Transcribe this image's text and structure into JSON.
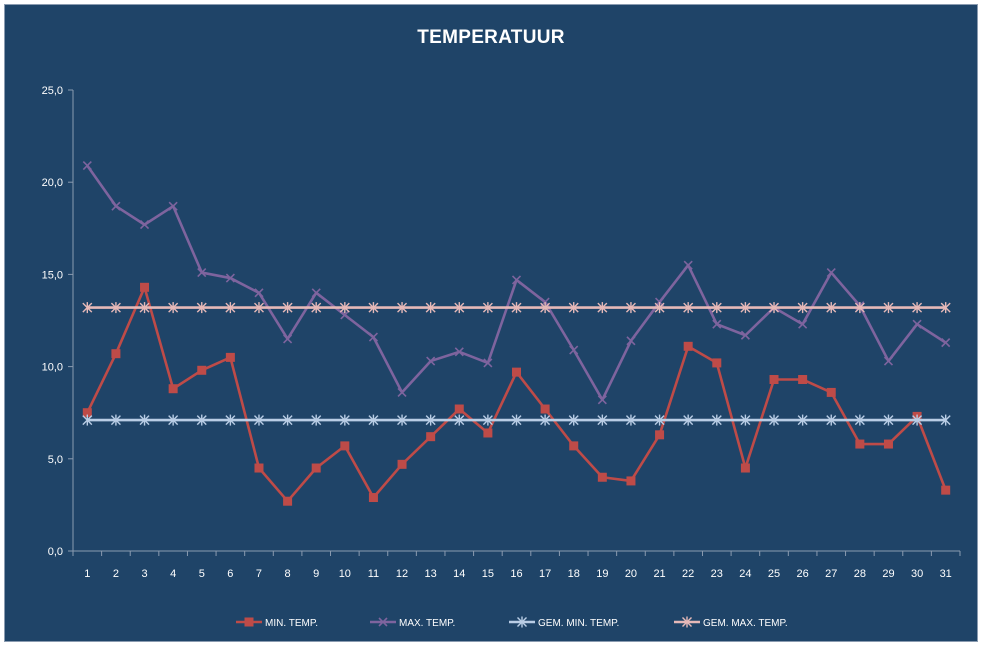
{
  "chart_data": {
    "type": "line",
    "title": "TEMPERATUUR",
    "xlabel": "",
    "ylabel": "",
    "ylim": [
      0,
      25
    ],
    "yticks": [
      "0,0",
      "5,0",
      "10,0",
      "15,0",
      "20,0",
      "25,0"
    ],
    "categories": [
      "1",
      "2",
      "3",
      "4",
      "5",
      "6",
      "7",
      "8",
      "9",
      "10",
      "11",
      "12",
      "13",
      "14",
      "15",
      "16",
      "17",
      "18",
      "19",
      "20",
      "21",
      "22",
      "23",
      "24",
      "25",
      "26",
      "27",
      "28",
      "29",
      "30",
      "31"
    ],
    "grid": false,
    "legend_position": "bottom",
    "series": [
      {
        "name": "MIN. TEMP.",
        "color": "#be4b48",
        "marker": "square",
        "values": [
          7.5,
          10.7,
          14.3,
          8.8,
          9.8,
          10.5,
          4.5,
          2.7,
          4.5,
          5.7,
          2.9,
          4.7,
          6.2,
          7.7,
          6.4,
          9.7,
          7.7,
          5.7,
          4.0,
          3.8,
          6.3,
          11.1,
          10.2,
          4.5,
          9.3,
          9.3,
          8.6,
          5.8,
          5.8,
          7.3,
          3.3
        ]
      },
      {
        "name": "MAX. TEMP.",
        "color": "#7e649e",
        "marker": "x",
        "values": [
          20.9,
          18.7,
          17.7,
          18.7,
          15.1,
          14.8,
          14.0,
          11.5,
          14.0,
          12.8,
          11.6,
          8.6,
          10.3,
          10.8,
          10.2,
          14.7,
          13.5,
          10.9,
          8.2,
          11.4,
          13.5,
          15.5,
          12.3,
          11.7,
          13.2,
          12.3,
          15.1,
          13.3,
          10.3,
          12.3,
          11.3
        ]
      },
      {
        "name": "GEM. MIN. TEMP.",
        "color": "#b9cde5",
        "marker": "star",
        "values": [
          7.1,
          7.1,
          7.1,
          7.1,
          7.1,
          7.1,
          7.1,
          7.1,
          7.1,
          7.1,
          7.1,
          7.1,
          7.1,
          7.1,
          7.1,
          7.1,
          7.1,
          7.1,
          7.1,
          7.1,
          7.1,
          7.1,
          7.1,
          7.1,
          7.1,
          7.1,
          7.1,
          7.1,
          7.1,
          7.1,
          7.1
        ]
      },
      {
        "name": "GEM. MAX. TEMP.",
        "color": "#e6b9b8",
        "marker": "star",
        "values": [
          13.2,
          13.2,
          13.2,
          13.2,
          13.2,
          13.2,
          13.2,
          13.2,
          13.2,
          13.2,
          13.2,
          13.2,
          13.2,
          13.2,
          13.2,
          13.2,
          13.2,
          13.2,
          13.2,
          13.2,
          13.2,
          13.2,
          13.2,
          13.2,
          13.2,
          13.2,
          13.2,
          13.2,
          13.2,
          13.2,
          13.2
        ]
      }
    ]
  }
}
